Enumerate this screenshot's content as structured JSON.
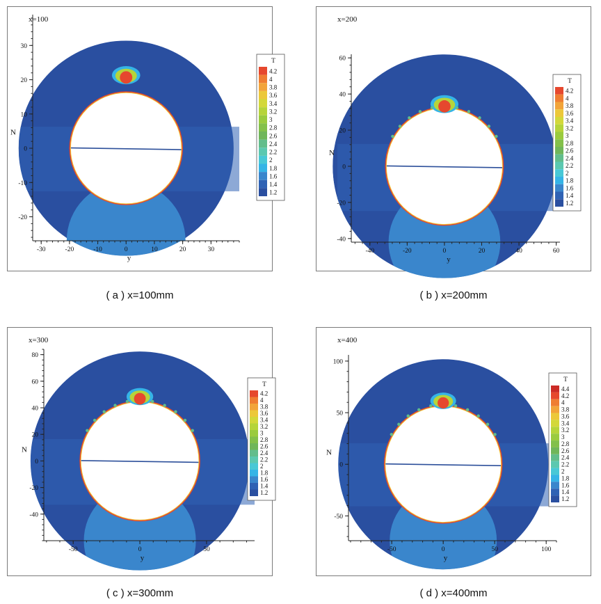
{
  "palette": {
    "levels": [
      1.2,
      1.4,
      1.6,
      1.8,
      2,
      2.2,
      2.4,
      2.6,
      2.8,
      3,
      3.2,
      3.4,
      3.6,
      3.8,
      4,
      4.2,
      4.4
    ],
    "colors": [
      "#2a4fa0",
      "#2f62b4",
      "#3a86cc",
      "#35b4e6",
      "#48c8d6",
      "#5bc8b0",
      "#62bd8c",
      "#70b65a",
      "#83c04a",
      "#9acb3e",
      "#b6d43a",
      "#d3d83a",
      "#ecc83a",
      "#f2a43a",
      "#ef7d32",
      "#e6482e",
      "#cc2b26"
    ]
  },
  "chart_data": [
    {
      "type": "contour",
      "panel_label": "x=100",
      "caption": "( a ) x=100mm",
      "xlabel": "y",
      "ylabel": "N",
      "xticks": [
        -30,
        -20,
        -10,
        0,
        10,
        20,
        30
      ],
      "yticks": [
        -20,
        -10,
        0,
        10,
        20,
        30
      ],
      "xlim": [
        -33,
        40
      ],
      "ylim": [
        -27,
        39
      ],
      "domain_radius": 38,
      "cylinder_radius": 19.5,
      "lower_region_radius": 21,
      "lower_region_center": [
        0,
        -27
      ],
      "blob_height": 4,
      "legend_title": "T",
      "legend_levels": [
        "4.2",
        "4",
        "3.8",
        "3.6",
        "3.4",
        "3.2",
        "3",
        "2.8",
        "2.6",
        "2.4",
        "2.2",
        "2",
        "1.8",
        "1.6",
        "1.4",
        "1.2"
      ],
      "legend_position": "right"
    },
    {
      "type": "contour",
      "panel_label": "x=200",
      "caption": "( b ) x=200mm",
      "xlabel": "y",
      "ylabel": "N",
      "xticks": [
        -40,
        -20,
        0,
        20,
        40,
        60
      ],
      "yticks": [
        -40,
        -20,
        0,
        20,
        40,
        60
      ],
      "xlim": [
        -50,
        62
      ],
      "ylim": [
        -42,
        62
      ],
      "domain_radius": 60,
      "cylinder_radius": 31,
      "lower_region_radius": 30,
      "lower_region_center": [
        0,
        -42
      ],
      "blob_height": 6,
      "legend_title": "T",
      "legend_levels": [
        "4.2",
        "4",
        "3.8",
        "3.6",
        "3.4",
        "3.2",
        "3",
        "2.8",
        "2.6",
        "2.4",
        "2.2",
        "2",
        "1.8",
        "1.6",
        "1.4",
        "1.2"
      ],
      "legend_position": "right"
    },
    {
      "type": "contour",
      "panel_label": "x=300",
      "caption": "( c ) x=300mm",
      "xlabel": "y",
      "ylabel": "N",
      "xticks": [
        -50,
        0,
        50
      ],
      "yticks": [
        -40,
        -20,
        0,
        20,
        40,
        60,
        80
      ],
      "xlim": [
        -72,
        86
      ],
      "ylim": [
        -60,
        84
      ],
      "domain_radius": 82,
      "cylinder_radius": 44,
      "lower_region_radius": 42,
      "lower_region_center": [
        0,
        -60
      ],
      "blob_height": 8,
      "legend_title": "T",
      "legend_levels": [
        "4.2",
        "4",
        "3.8",
        "3.6",
        "3.4",
        "3.2",
        "3",
        "2.8",
        "2.6",
        "2.4",
        "2.2",
        "2",
        "1.8",
        "1.6",
        "1.4",
        "1.2"
      ],
      "legend_position": "right"
    },
    {
      "type": "contour",
      "panel_label": "x=400",
      "caption": "( d ) x=400mm",
      "xlabel": "y",
      "ylabel": "N",
      "xticks": [
        -50,
        0,
        50,
        100
      ],
      "yticks": [
        -50,
        0,
        50,
        100
      ],
      "xlim": [
        -92,
        110
      ],
      "ylim": [
        -74,
        106
      ],
      "domain_radius": 102,
      "cylinder_radius": 56,
      "lower_region_radius": 52,
      "lower_region_center": [
        0,
        -74
      ],
      "blob_height": 10,
      "legend_title": "T",
      "legend_levels": [
        "4.4",
        "4.2",
        "4",
        "3.8",
        "3.6",
        "3.4",
        "3.2",
        "3",
        "2.8",
        "2.6",
        "2.4",
        "2.2",
        "2",
        "1.8",
        "1.6",
        "1.4",
        "1.2"
      ],
      "legend_position": "right"
    }
  ]
}
